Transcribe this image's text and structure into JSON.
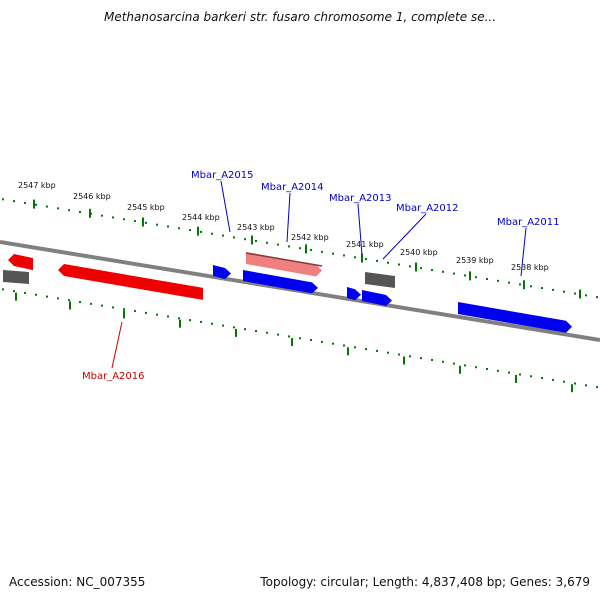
{
  "title": "Methanosarcina barkeri str. fusaro chromosome 1, complete se...",
  "footer": {
    "accession": "Accession: NC_007355",
    "summary": "Topology: circular; Length: 4,837,408 bp; Genes: 3,679"
  },
  "colors": {
    "forward_cds": "#0000ee",
    "reverse_cds": "#ee0000",
    "highlight_reverse": "#f08080",
    "other_feature": "#555555",
    "backbone": "#808080",
    "ticks": "#007700",
    "label_forward": "#0000cc",
    "label_reverse": "#cc0000"
  },
  "scale": {
    "unit": "kbp",
    "tick_labels": [
      "2547 kbp",
      "2546 kbp",
      "2545 kbp",
      "2544 kbp",
      "2543 kbp",
      "2542 kbp",
      "2541 kbp",
      "2540 kbp",
      "2539 kbp",
      "2538 kbp"
    ]
  },
  "gene_labels": {
    "forward": [
      "Mbar_A2015",
      "Mbar_A2014",
      "Mbar_A2013",
      "Mbar_A2012",
      "Mbar_A2011"
    ],
    "reverse": [
      "Mbar_A2016"
    ]
  }
}
